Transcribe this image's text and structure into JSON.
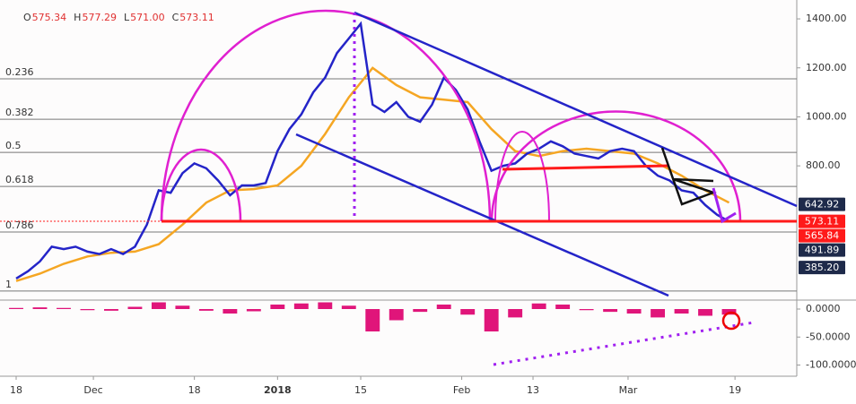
{
  "chart_data": {
    "type": "line",
    "ohlc": [
      {
        "key": "O",
        "text": "575.34"
      },
      {
        "key": "H",
        "text": "577.29"
      },
      {
        "key": "L",
        "text": "571.00"
      },
      {
        "key": "C",
        "text": "573.11"
      }
    ],
    "xlim": [
      -2.72,
      131.4
    ],
    "ylim": [
      252,
      1477
    ],
    "yticks": [
      {
        "value": 800,
        "label": "800.00"
      },
      {
        "value": 1000,
        "label": "1000.00"
      },
      {
        "value": 1200,
        "label": "1200.00"
      },
      {
        "value": 1400,
        "label": "1400.00"
      }
    ],
    "xticks": [
      {
        "value": 0,
        "label": "18"
      },
      {
        "value": 13,
        "label": "Dec"
      },
      {
        "value": 30,
        "label": "18"
      },
      {
        "value": 44,
        "label": "2018"
      },
      {
        "value": 58,
        "label": "15"
      },
      {
        "value": 75,
        "label": "Feb"
      },
      {
        "value": 87,
        "label": "13"
      },
      {
        "value": 103,
        "label": "Mar"
      },
      {
        "value": 121,
        "label": "19"
      }
    ],
    "series": [
      {
        "color": "#2424c8",
        "x": [
          0,
          2,
          4,
          6,
          8,
          10,
          12,
          14,
          16,
          18,
          20,
          22,
          24,
          26,
          28,
          30,
          32,
          34,
          36,
          38,
          40,
          42,
          44,
          46,
          48,
          50,
          52,
          54,
          56,
          58,
          60,
          62,
          64,
          66,
          68,
          70,
          72,
          74,
          76,
          78,
          80,
          82,
          84,
          86,
          88,
          90,
          92,
          94,
          96,
          98,
          100,
          102,
          104,
          106,
          108,
          110,
          112,
          114,
          116,
          118,
          120
        ],
        "values": [
          340,
          370,
          410,
          470,
          460,
          470,
          450,
          440,
          460,
          440,
          470,
          560,
          700,
          690,
          770,
          810,
          790,
          740,
          680,
          720,
          720,
          730,
          860,
          950,
          1010,
          1100,
          1160,
          1260,
          1320,
          1380,
          1050,
          1020,
          1060,
          1000,
          980,
          1050,
          1160,
          1110,
          1030,
          900,
          780,
          800,
          810,
          850,
          870,
          900,
          880,
          850,
          840,
          830,
          860,
          870,
          860,
          800,
          760,
          740,
          700,
          690,
          640,
          600,
          573.11
        ]
      },
      {
        "color": "#f5a623",
        "x": [
          0,
          4,
          8,
          12,
          16,
          20,
          24,
          28,
          32,
          36,
          40,
          44,
          48,
          52,
          56,
          60,
          64,
          68,
          72,
          76,
          80,
          84,
          88,
          92,
          96,
          100,
          104,
          108,
          112,
          116,
          120
        ],
        "values": [
          330,
          360,
          400,
          430,
          445,
          450,
          480,
          560,
          650,
          700,
          705,
          720,
          800,
          930,
          1080,
          1200,
          1130,
          1080,
          1070,
          1060,
          950,
          860,
          840,
          860,
          870,
          860,
          850,
          810,
          760,
          700,
          650
        ]
      }
    ],
    "fib_levels": [
      {
        "ratio": 0.236,
        "price": 1155
      },
      {
        "ratio": 0.382,
        "price": 990
      },
      {
        "ratio": 0.5,
        "price": 855
      },
      {
        "ratio": 0.618,
        "price": 716
      },
      {
        "ratio": 0.786,
        "price": 530
      },
      {
        "ratio": 1,
        "price": 289
      }
    ],
    "price_labels": [
      {
        "value": 642.92,
        "color": "#1e2a4a"
      },
      {
        "value": 573.11,
        "color": "#ff1a1a"
      },
      {
        "value": 565.84,
        "color": "#ff1a1a"
      },
      {
        "value": 491.89,
        "color": "#1e2a4a"
      },
      {
        "value": 385.2,
        "label": "385.20",
        "color": "#1e2a4a"
      }
    ],
    "macd": {
      "ylim": [
        -120,
        16
      ],
      "yticks": [
        {
          "value": 0,
          "label": "0.0000"
        },
        {
          "value": -50,
          "label": "-50.0000"
        },
        {
          "value": -100,
          "label": "-100.0000"
        }
      ],
      "histogram": {
        "color": "#e0157a",
        "x": [
          0,
          4,
          8,
          12,
          16,
          20,
          24,
          28,
          32,
          36,
          40,
          44,
          48,
          52,
          56,
          60,
          64,
          68,
          72,
          76,
          80,
          84,
          88,
          92,
          96,
          100,
          104,
          108,
          112,
          116,
          120
        ],
        "values": [
          2,
          3,
          2,
          -2,
          -3,
          4,
          12,
          6,
          -3,
          -8,
          -4,
          8,
          10,
          12,
          6,
          -40,
          -20,
          -5,
          8,
          -10,
          -40,
          -15,
          10,
          8,
          -2,
          -5,
          -8,
          -15,
          -8,
          -12,
          -10
        ]
      }
    }
  }
}
